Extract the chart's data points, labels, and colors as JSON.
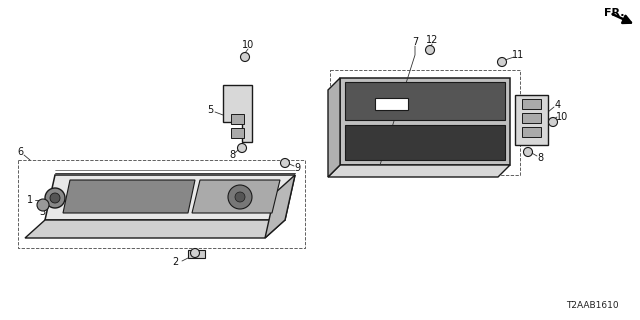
{
  "background_color": "#ffffff",
  "diagram_code": "T2AAB1610",
  "line_color": "#1a1a1a",
  "dash_color": "#555555",
  "gray_fill": "#c8c8c8",
  "dark_fill": "#4a4a4a",
  "light_fill": "#e0e0e0",
  "label_fs": 7,
  "code_fs": 6.5
}
